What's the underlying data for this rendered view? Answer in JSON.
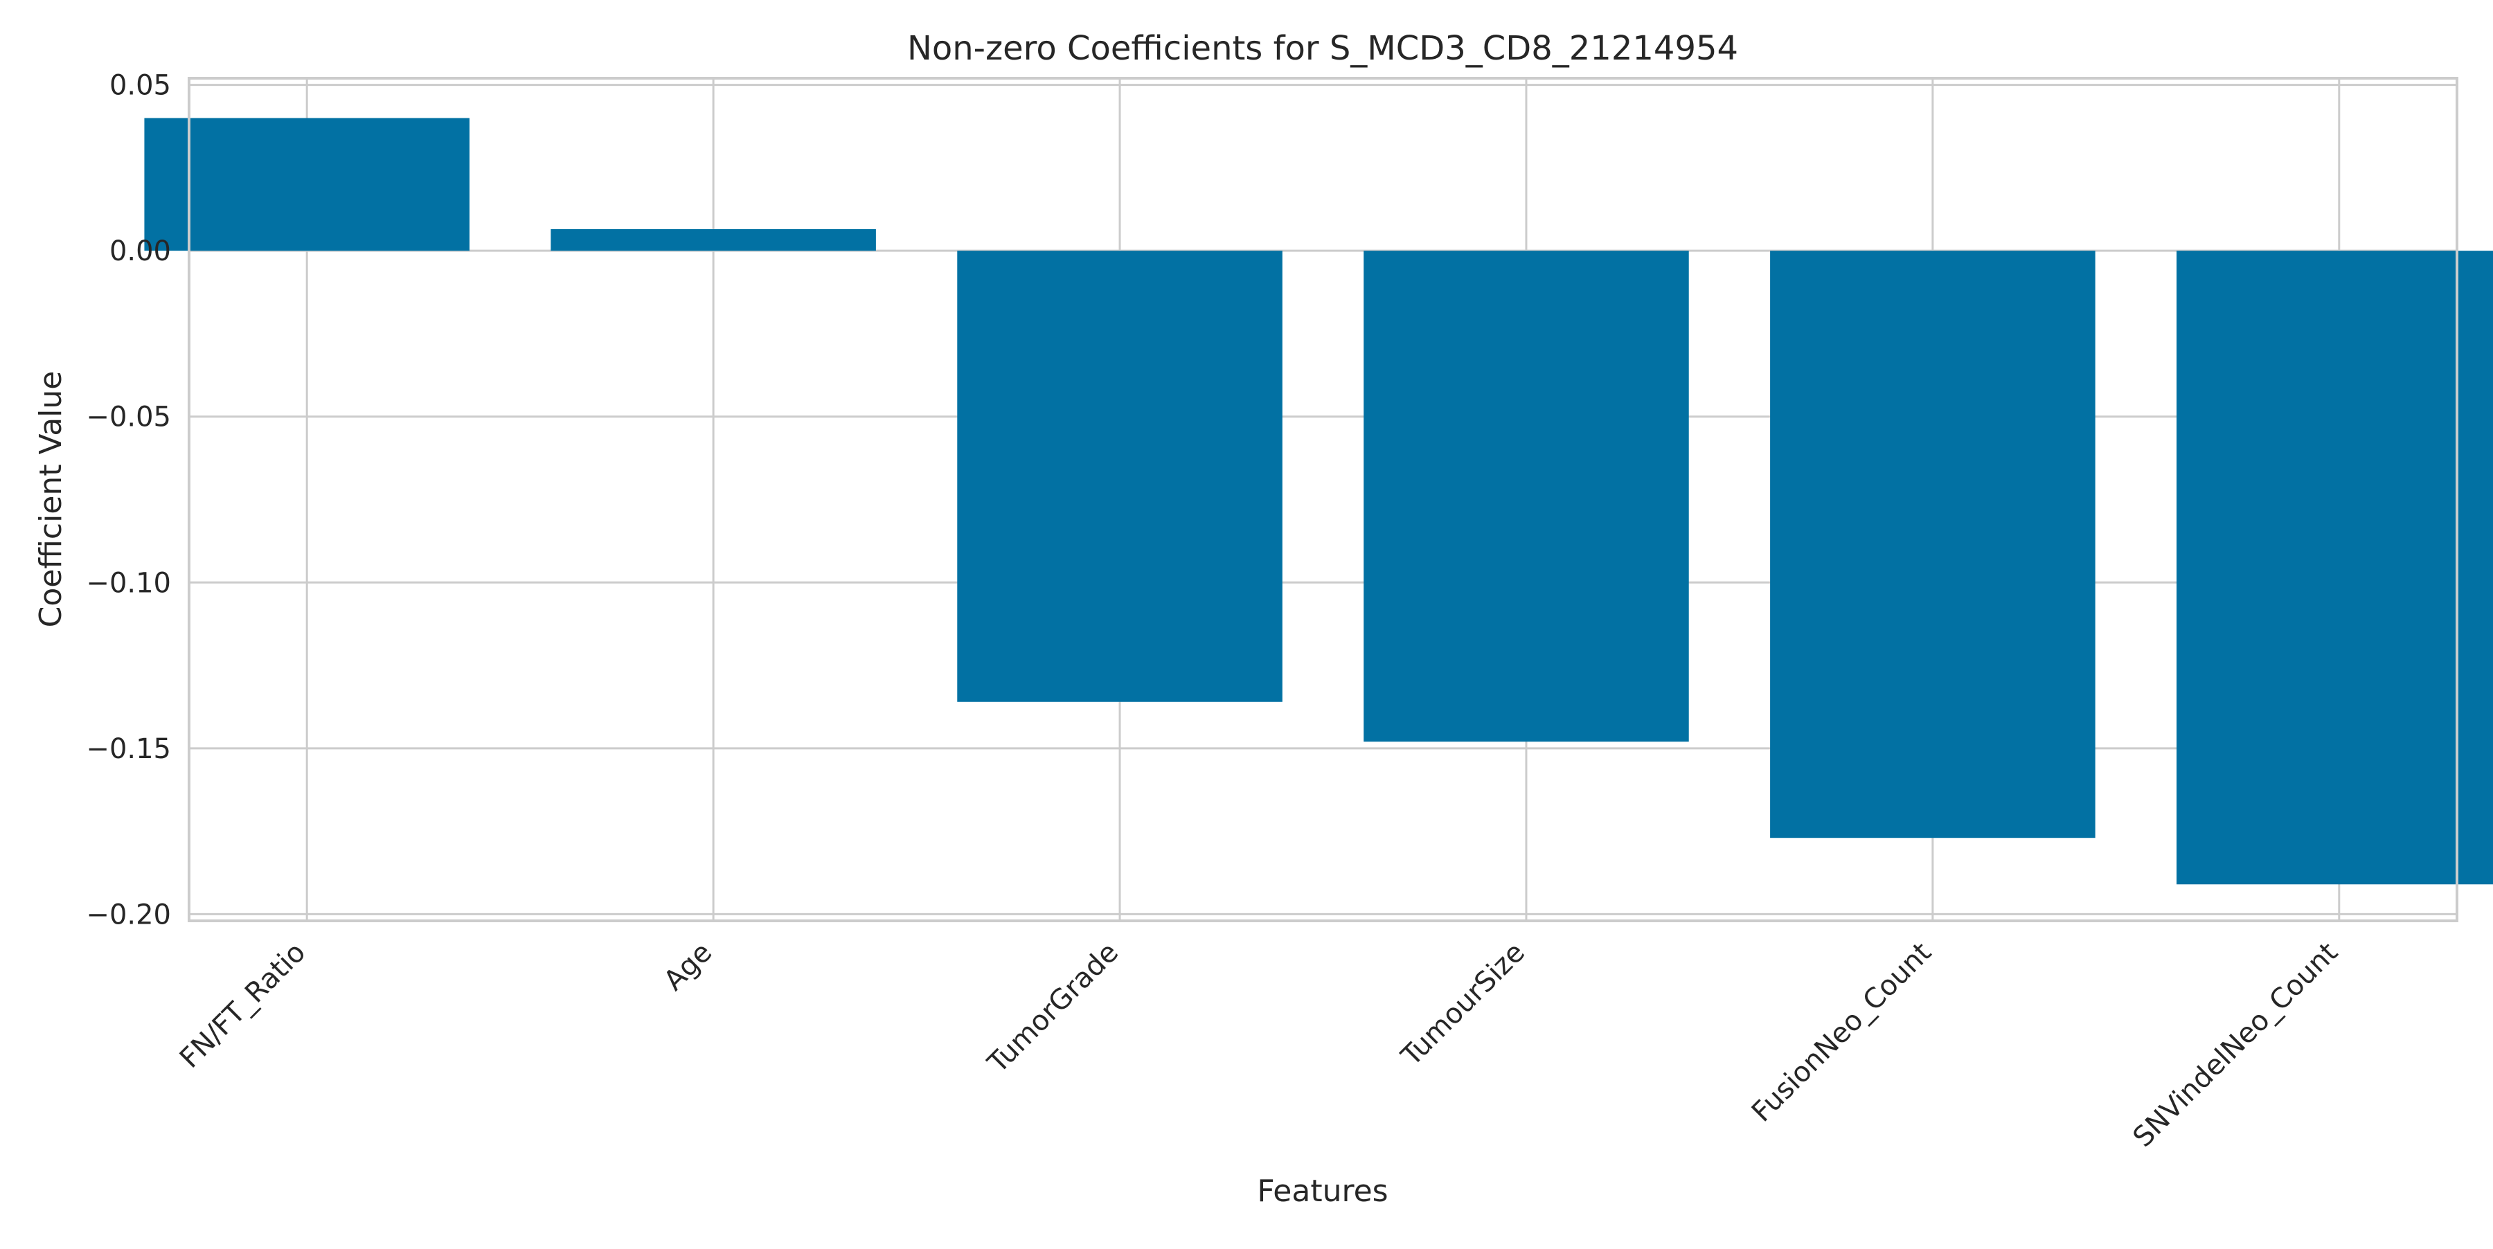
{
  "chart_data": {
    "type": "bar",
    "title": "Non-zero Coefficients for S_MCD3_CD8_21214954",
    "xlabel": "Features",
    "ylabel": "Coefficient Value",
    "categories": [
      "FN/FT_Ratio",
      "Age",
      "TumorGrade",
      "TumourSize",
      "FusionNeo_Count",
      "SNVindelNeo_Count"
    ],
    "values": [
      0.04,
      0.0065,
      -0.136,
      -0.148,
      -0.177,
      -0.191
    ],
    "ylim": [
      -0.202,
      0.052
    ],
    "yticks": [
      0.05,
      0.0,
      -0.05,
      -0.1,
      -0.15,
      -0.2
    ],
    "ytick_labels": [
      "0.05",
      "0.00",
      "−0.05",
      "−0.10",
      "−0.15",
      "−0.20"
    ],
    "grid": true,
    "bar_color": "#0271a3",
    "grid_color": "#cccccc"
  }
}
